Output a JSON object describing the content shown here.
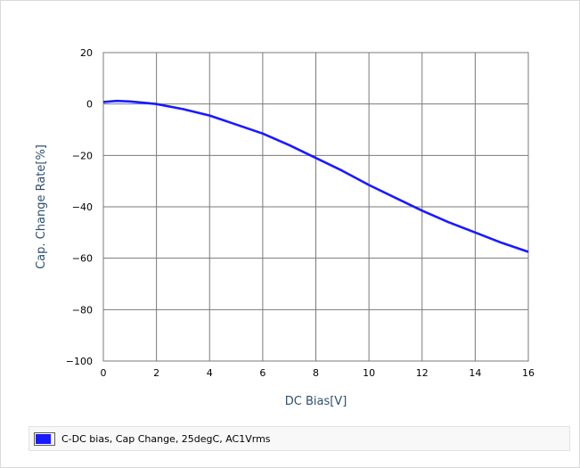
{
  "chart_data": {
    "type": "line",
    "xlabel": "DC Bias[V]",
    "ylabel": "Cap. Change Rate[%]",
    "xlim": [
      0,
      16
    ],
    "ylim": [
      -100,
      20
    ],
    "xticks": [
      "0",
      "2",
      "4",
      "6",
      "8",
      "10",
      "12",
      "14",
      "16"
    ],
    "yticks": [
      "20",
      "0",
      "−20",
      "−40",
      "−60",
      "−80",
      "−100"
    ],
    "grid": true,
    "legend_position": "bottom",
    "series": [
      {
        "name": "C-DC bias, Cap Change, 25degC, AC1Vrms",
        "color": "#1a1aff",
        "x": [
          0,
          0.5,
          1,
          1.5,
          2,
          3,
          4,
          5,
          6,
          7,
          8,
          9,
          10,
          11,
          12,
          13,
          14,
          15,
          16
        ],
        "y": [
          0.8,
          1.2,
          1.0,
          0.5,
          0,
          -2,
          -4.5,
          -8,
          -11.5,
          -16,
          -21,
          -26,
          -31.5,
          -36.5,
          -41.5,
          -46,
          -50,
          -54,
          -57.5
        ]
      }
    ]
  },
  "legend": {
    "label": "C-DC bias, Cap Change, 25degC, AC1Vrms",
    "swatch_color": "#1a1aff"
  }
}
